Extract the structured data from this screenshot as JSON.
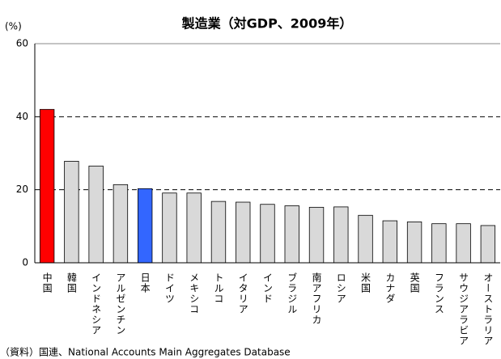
{
  "chart_data": {
    "type": "bar",
    "title": "製造業（対GDP、2009年）",
    "y_unit": "(%)",
    "source": "（資料）国連、National Accounts Main Aggregates  Database",
    "categories": [
      "中国",
      "韓国",
      "インドネシア",
      "アルゼンチン",
      "日本",
      "ドイツ",
      "メキシコ",
      "トルコ",
      "イタリア",
      "インド",
      "ブラジル",
      "南アフリカ",
      "ロシア",
      "米国",
      "カナダ",
      "英国",
      "フランス",
      "サウジアラビア",
      "オーストラリア"
    ],
    "values": [
      42,
      27.8,
      26.5,
      21.4,
      20.3,
      19.1,
      19.1,
      16.8,
      16.6,
      16.0,
      15.6,
      15.2,
      15.3,
      13.0,
      11.5,
      11.2,
      10.7,
      10.7,
      10.2
    ],
    "colors": [
      "#ff0000",
      "#d9d9d9",
      "#d9d9d9",
      "#d9d9d9",
      "#3366ff",
      "#d9d9d9",
      "#d9d9d9",
      "#d9d9d9",
      "#d9d9d9",
      "#d9d9d9",
      "#d9d9d9",
      "#d9d9d9",
      "#d9d9d9",
      "#d9d9d9",
      "#d9d9d9",
      "#d9d9d9",
      "#d9d9d9",
      "#d9d9d9",
      "#d9d9d9"
    ],
    "ylim": [
      0,
      60
    ],
    "yticks": [
      0,
      20,
      40,
      60
    ],
    "grid": true
  }
}
